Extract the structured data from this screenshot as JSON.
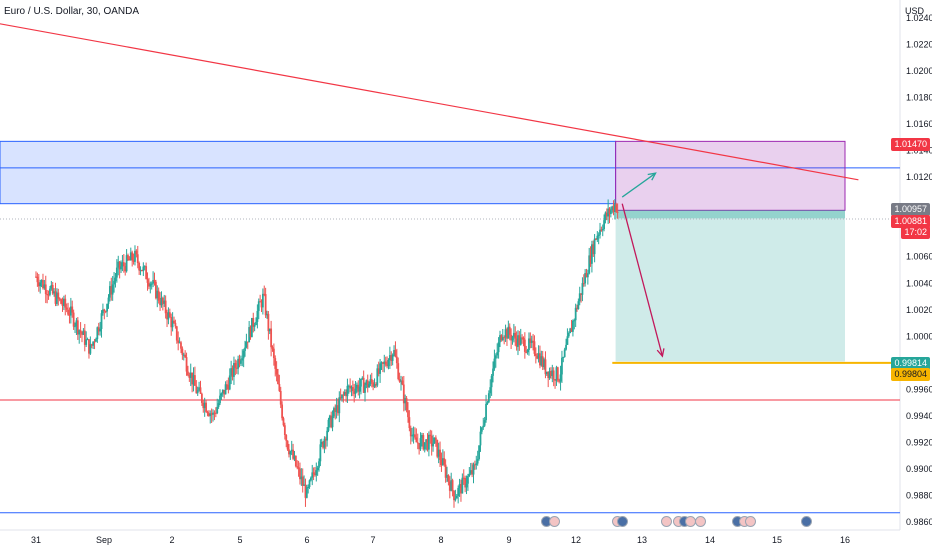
{
  "header": {
    "title": "Euro / U.S. Dollar, 30, OANDA",
    "currency": "USD"
  },
  "price_badges": {
    "target_top": "1.01470",
    "current_price": "1.00957",
    "last_price": "1.00881",
    "countdown": "17:02",
    "stop_green": "0.99814",
    "support_yellow": "0.99804"
  },
  "colors": {
    "bull": "#26a69a",
    "bear": "#ef5350",
    "trendline": "#f23645",
    "zone_blue": "#2962ff",
    "position_purple": "#9c27b0",
    "support": "#f7b500",
    "hline_red": "#f23645",
    "hline_blue": "#2962ff"
  },
  "chart_data": {
    "type": "candlestick",
    "symbol": "EURUSD",
    "timeframe": "30",
    "x_tick_labels": [
      "31",
      "Sep",
      "2",
      "5",
      "6",
      "7",
      "8",
      "9",
      "12",
      "13",
      "14",
      "15",
      "16"
    ],
    "y_ticks": [
      "1.02400",
      "1.02200",
      "1.02000",
      "1.01800",
      "1.01600",
      "1.01400",
      "1.01200",
      "1.00600",
      "1.00400",
      "1.00200",
      "1.00000",
      "0.99600",
      "0.99400",
      "0.99200",
      "0.99000",
      "0.98800",
      "0.98600"
    ],
    "ylim": [
      0.9855,
      1.0245
    ],
    "close_path": [
      {
        "t": 0.0,
        "p": 1.0045
      },
      {
        "t": 0.5,
        "p": 1.0018
      },
      {
        "t": 0.8,
        "p": 0.999
      },
      {
        "t": 1.2,
        "p": 1.005
      },
      {
        "t": 1.45,
        "p": 1.006
      },
      {
        "t": 1.7,
        "p": 1.004
      },
      {
        "t": 2.0,
        "p": 1.001
      },
      {
        "t": 2.35,
        "p": 0.996
      },
      {
        "t": 2.6,
        "p": 0.994
      },
      {
        "t": 3.0,
        "p": 0.9985
      },
      {
        "t": 3.35,
        "p": 1.003
      },
      {
        "t": 3.7,
        "p": 0.992
      },
      {
        "t": 4.0,
        "p": 0.988
      },
      {
        "t": 4.3,
        "p": 0.993
      },
      {
        "t": 4.6,
        "p": 0.996
      },
      {
        "t": 5.0,
        "p": 0.9965
      },
      {
        "t": 5.3,
        "p": 0.999
      },
      {
        "t": 5.6,
        "p": 0.992
      },
      {
        "t": 5.9,
        "p": 0.992
      },
      {
        "t": 6.2,
        "p": 0.988
      },
      {
        "t": 6.5,
        "p": 0.99
      },
      {
        "t": 6.7,
        "p": 0.996
      },
      {
        "t": 6.9,
        "p": 1.0005
      },
      {
        "t": 7.2,
        "p": 0.9995
      },
      {
        "t": 7.4,
        "p": 0.999
      },
      {
        "t": 7.55,
        "p": 0.9975
      },
      {
        "t": 7.75,
        "p": 0.997
      },
      {
        "t": 8.0,
        "p": 1.002
      },
      {
        "t": 8.3,
        "p": 1.0075
      },
      {
        "t": 8.45,
        "p": 1.009
      },
      {
        "t": 8.6,
        "p": 1.01
      },
      {
        "t": 8.65,
        "p": 1.0091
      }
    ],
    "drawings": {
      "trendline": {
        "from": {
          "t": -1.0,
          "p": 1.024
        },
        "to": {
          "t": 12.2,
          "p": 1.0118
        }
      },
      "resistance_zone": {
        "top": 1.0147,
        "bottom": 1.01,
        "mid": 1.0127
      },
      "short_position": {
        "t_from": 8.6,
        "t_to": 12.0,
        "stop": 1.0147,
        "entry": 1.0095,
        "target": 0.9981
      },
      "support_line": {
        "price": 0.998,
        "t_from": 8.55,
        "t_to": 12.2
      },
      "red_hline": 0.9952,
      "blue_hline": 0.9867,
      "arrow_up": {
        "from": {
          "t": 8.7,
          "p": 1.0105
        },
        "to": {
          "t": 9.2,
          "p": 1.0123
        }
      },
      "arrow_down": {
        "from": {
          "t": 8.7,
          "p": 1.01
        },
        "to": {
          "t": 9.3,
          "p": 0.9985
        }
      }
    },
    "event_icons": 16
  }
}
